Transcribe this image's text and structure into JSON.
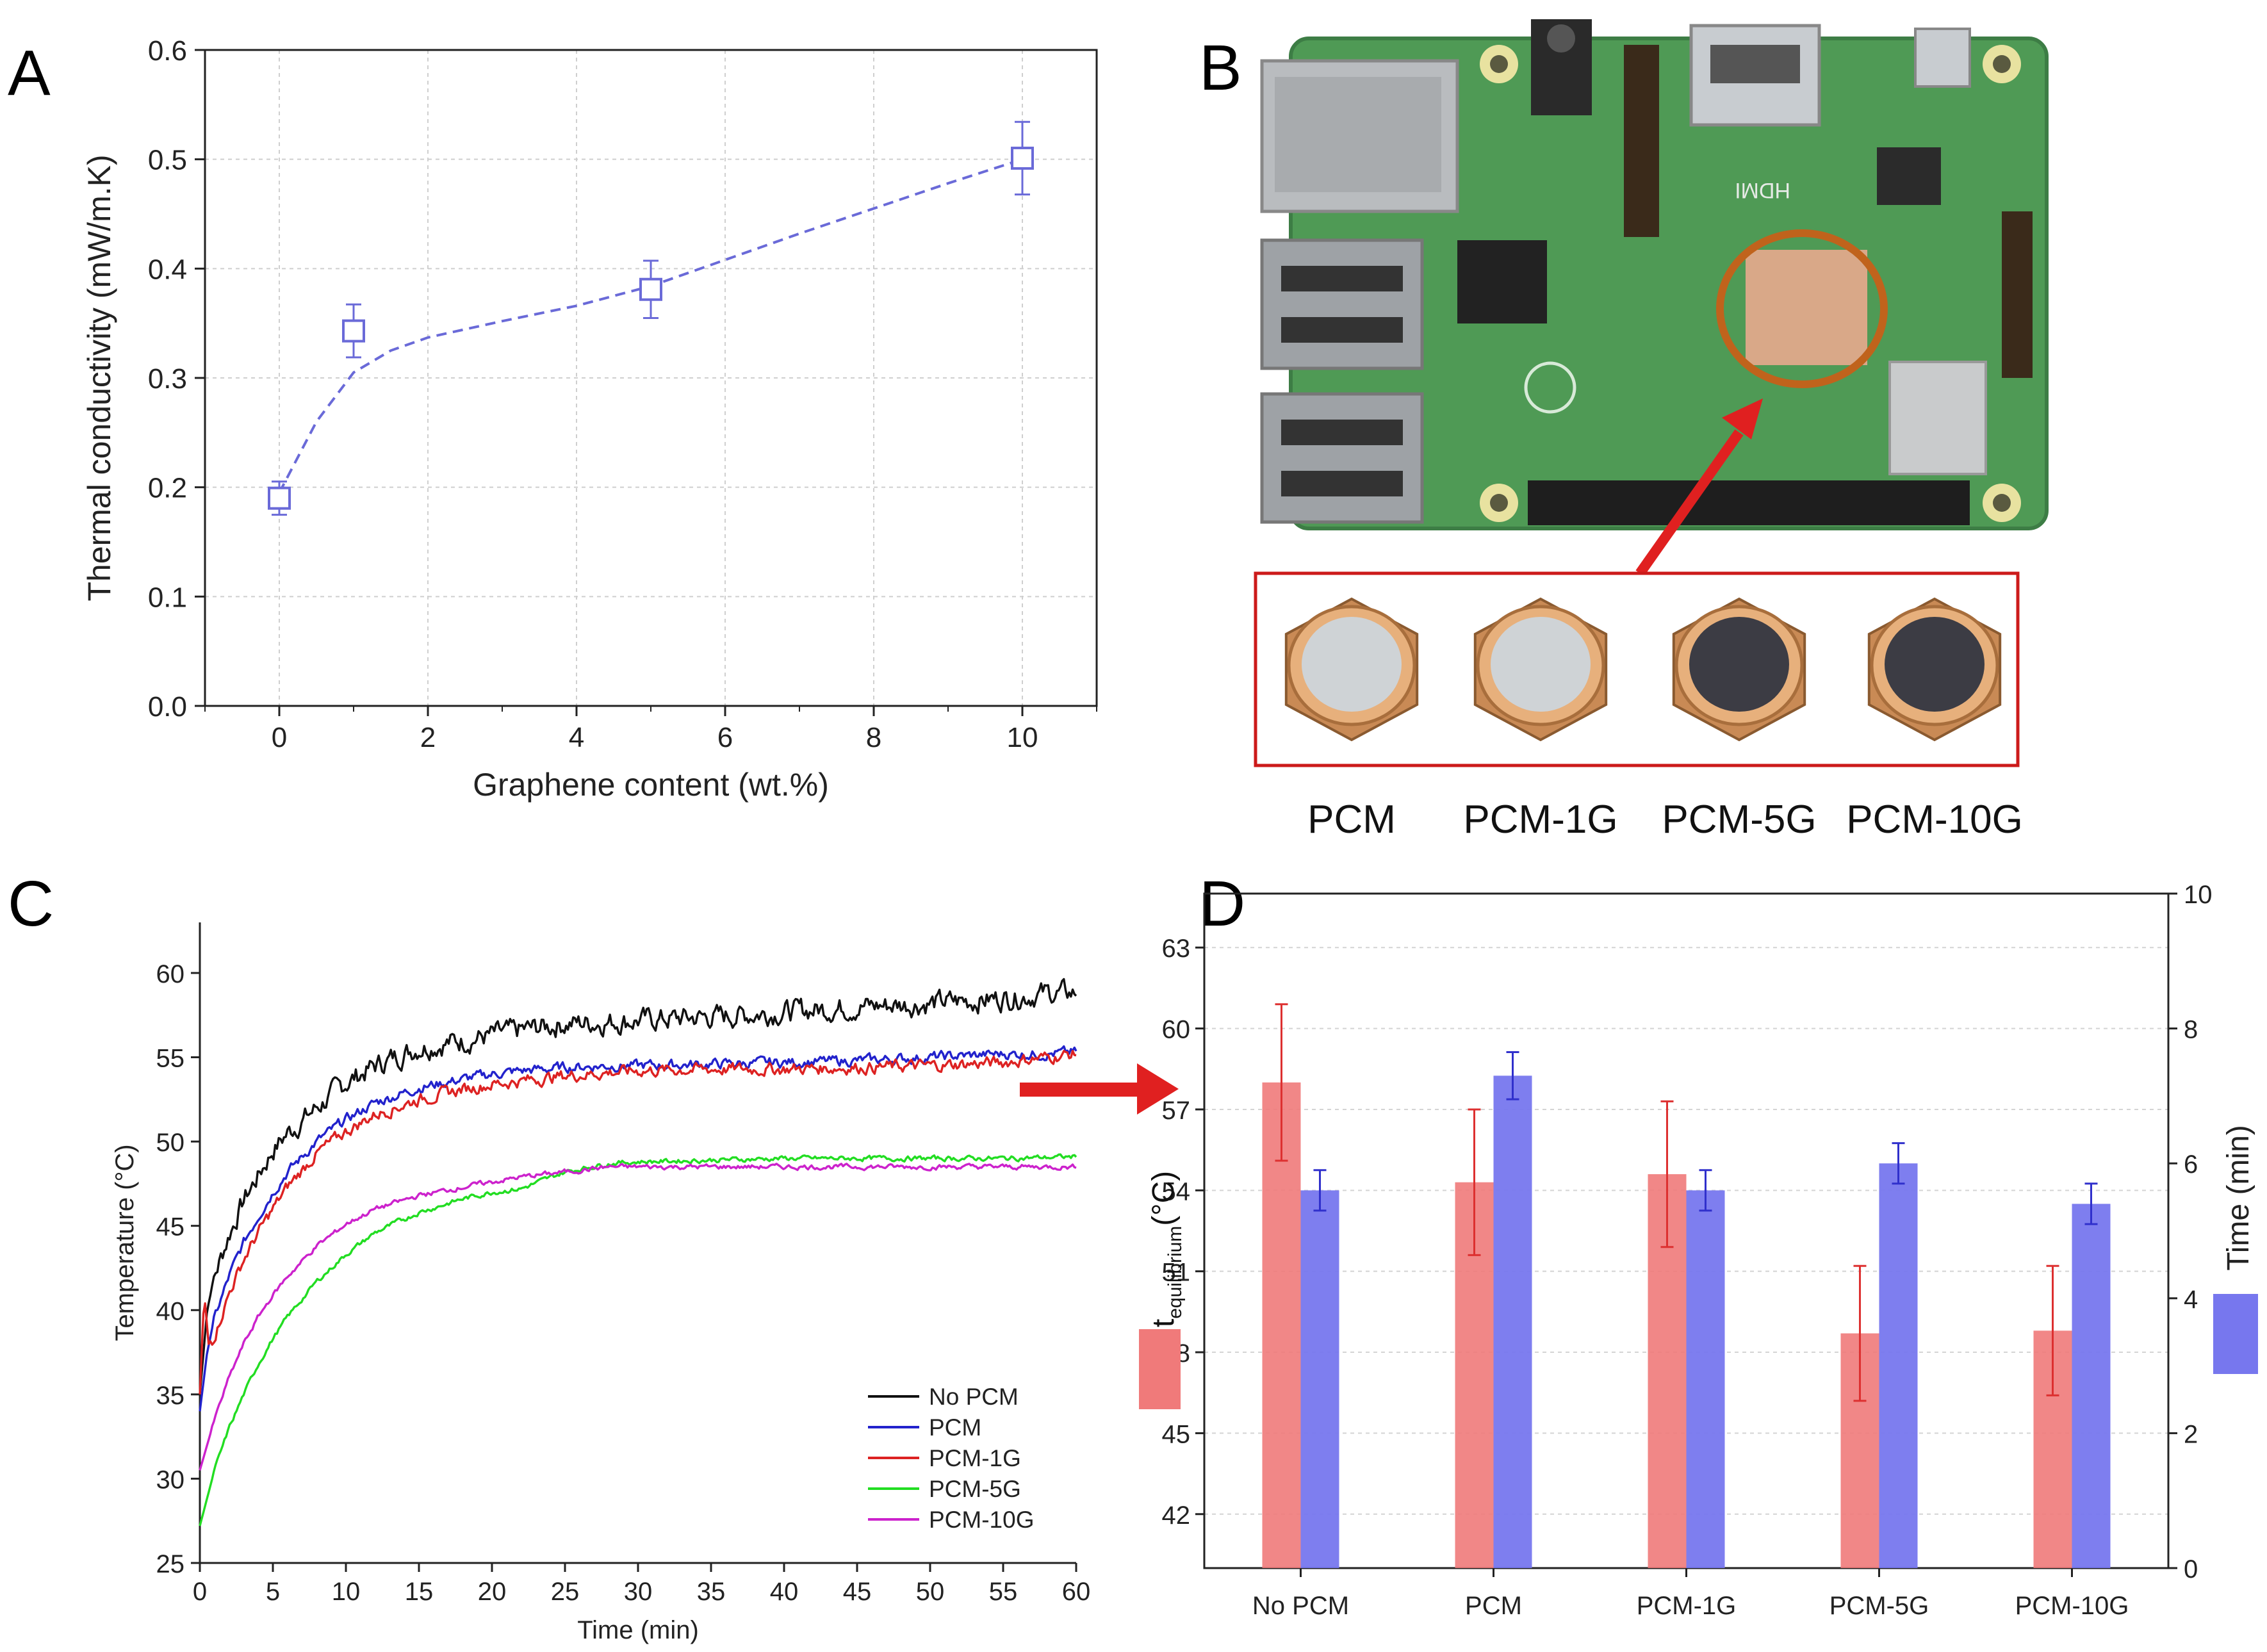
{
  "panels": {
    "a": "A",
    "b": "B",
    "c": "C",
    "d": "D"
  },
  "colors": {
    "pcm_dark": "#3c3c44",
    "pcm_light": "#cfd3d6",
    "board": "#4f9a55",
    "bar_t": "#f07a7a",
    "bar_time": "#7777ee"
  },
  "photo": {
    "board_label": "HDMI",
    "samples": [
      {
        "label": "PCM",
        "core": "light"
      },
      {
        "label": "PCM-1G",
        "core": "light"
      },
      {
        "label": "PCM-5G",
        "core": "dark"
      },
      {
        "label": "PCM-10G",
        "core": "dark"
      }
    ]
  },
  "chart_data": [
    {
      "id": "A",
      "type": "scatter",
      "title": "",
      "xlabel": "Graphene content (wt.%)",
      "ylabel": "Thermal conductivity (mW/m.K)",
      "xlim": [
        -1,
        11
      ],
      "ylim": [
        0.0,
        0.6
      ],
      "xticks": [
        0,
        2,
        4,
        6,
        8,
        10
      ],
      "yticks": [
        0.0,
        0.1,
        0.2,
        0.3,
        0.4,
        0.5,
        0.6
      ],
      "color": "#6a6ad8",
      "points": [
        {
          "x": 0,
          "y": 0.19,
          "err": 0.007
        },
        {
          "x": 1,
          "y": 0.343,
          "err": 0.016
        },
        {
          "x": 5,
          "y": 0.381,
          "err": 0.018
        },
        {
          "x": 10,
          "y": 0.501,
          "err": 0.025
        }
      ],
      "fit": {
        "x": [
          0,
          0.5,
          1,
          1.5,
          2,
          3,
          4,
          5,
          6,
          7,
          8,
          9,
          10
        ],
        "y": [
          0.195,
          0.26,
          0.305,
          0.325,
          0.337,
          0.352,
          0.366,
          0.384,
          0.408,
          0.432,
          0.455,
          0.478,
          0.5
        ]
      },
      "grid": true
    },
    {
      "id": "C",
      "type": "line",
      "xlabel": "Time (min)",
      "ylabel": "Temperature (°C)",
      "xlim": [
        0,
        60
      ],
      "ylim": [
        25,
        63
      ],
      "xticks": [
        0,
        5,
        10,
        15,
        20,
        25,
        30,
        35,
        40,
        45,
        50,
        55,
        60
      ],
      "yticks": [
        25,
        30,
        35,
        40,
        45,
        50,
        55,
        60
      ],
      "legend_position": "bottom-right",
      "series": [
        {
          "name": "No PCM",
          "color": "#111111",
          "noise": 0.55,
          "x": [
            0,
            0.5,
            1,
            2,
            3,
            4,
            5,
            6,
            8,
            10,
            12,
            15,
            18,
            20,
            22,
            25,
            28,
            30,
            35,
            40,
            45,
            50,
            55,
            58,
            60
          ],
          "y": [
            35,
            40,
            42,
            44.5,
            46.5,
            48,
            49.5,
            50.5,
            52,
            53.5,
            54.5,
            55.6,
            56,
            56.3,
            56.6,
            57,
            57.1,
            57.2,
            57.4,
            57.7,
            58,
            58.2,
            58.5,
            58.8,
            58.8
          ]
        },
        {
          "name": "PCM",
          "color": "#2222cc",
          "noise": 0.25,
          "x": [
            0,
            0.5,
            1,
            2,
            3,
            4,
            5,
            6,
            8,
            10,
            12,
            15,
            18,
            20,
            22,
            25,
            28,
            30,
            35,
            40,
            45,
            50,
            55,
            58,
            60
          ],
          "y": [
            34,
            37.5,
            39.5,
            42,
            44,
            45.6,
            47,
            48.2,
            50,
            51.3,
            52.3,
            53.2,
            53.7,
            54,
            54.2,
            54.4,
            54.5,
            54.5,
            54.6,
            54.7,
            54.8,
            55,
            55.2,
            55.2,
            55.3
          ]
        },
        {
          "name": "PCM-1G",
          "color": "#dd2222",
          "noise": 0.3,
          "x": [
            0,
            0.3,
            0.6,
            1,
            2,
            3,
            4,
            5,
            6,
            8,
            10,
            12,
            15,
            18,
            20,
            22,
            25,
            28,
            30,
            35,
            40,
            45,
            50,
            55,
            58,
            60
          ],
          "y": [
            35,
            41,
            38,
            38.5,
            41,
            43,
            44.6,
            46,
            47.3,
            49.3,
            50.6,
            51.6,
            52.5,
            53.1,
            53.4,
            53.6,
            53.9,
            54.1,
            54.2,
            54.3,
            54.3,
            54.4,
            54.5,
            54.7,
            55,
            55.2
          ]
        },
        {
          "name": "PCM-5G",
          "color": "#22dd22",
          "noise": 0.12,
          "x": [
            0,
            1,
            2,
            3,
            4,
            5,
            6,
            8,
            10,
            12,
            15,
            18,
            20,
            22,
            25,
            28,
            30,
            35,
            40,
            45,
            50,
            55,
            60
          ],
          "y": [
            27.2,
            30.5,
            33,
            35,
            36.8,
            38.3,
            39.6,
            41.7,
            43.3,
            44.6,
            45.8,
            46.6,
            47,
            47.2,
            48.2,
            48.7,
            48.8,
            48.9,
            49,
            49,
            49,
            49,
            49.1
          ]
        },
        {
          "name": "PCM-10G",
          "color": "#cc22cc",
          "noise": 0.12,
          "x": [
            0,
            1,
            2,
            3,
            4,
            5,
            6,
            8,
            10,
            12,
            15,
            18,
            20,
            22,
            25,
            28,
            30,
            35,
            40,
            45,
            50,
            55,
            60
          ],
          "y": [
            30.5,
            33.5,
            36,
            38,
            39.6,
            40.9,
            42,
            43.8,
            45.1,
            46,
            46.8,
            47.3,
            47.6,
            47.9,
            48.2,
            48.5,
            48.5,
            48.5,
            48.5,
            48.5,
            48.5,
            48.5,
            48.5
          ]
        }
      ]
    },
    {
      "id": "D",
      "type": "bar",
      "categories": [
        "No PCM",
        "PCM",
        "PCM-1G",
        "PCM-5G",
        "PCM-10G"
      ],
      "ylabel_left_main": "t",
      "ylabel_left_sub": "equilibrium",
      "ylabel_left_unit": "(°C)",
      "ylabel_right": "Time (min)",
      "ylim_left": [
        40,
        65
      ],
      "yticks_left": [
        42,
        45,
        48,
        51,
        54,
        57,
        60,
        63
      ],
      "ylim_right": [
        0,
        10
      ],
      "yticks_right": [
        0,
        2,
        4,
        6,
        8,
        10
      ],
      "grid": true,
      "series": [
        {
          "name": "t_equilibrium",
          "axis": "left",
          "color": "#f07a7a",
          "values": [
            58.0,
            54.3,
            54.6,
            48.7,
            48.8
          ],
          "errors": [
            2.9,
            2.7,
            2.7,
            2.5,
            2.4
          ]
        },
        {
          "name": "Time",
          "axis": "right",
          "color": "#7777ee",
          "values": [
            5.6,
            7.3,
            5.6,
            6.0,
            5.4
          ],
          "errors": [
            0.3,
            0.35,
            0.3,
            0.3,
            0.3
          ]
        }
      ]
    }
  ]
}
